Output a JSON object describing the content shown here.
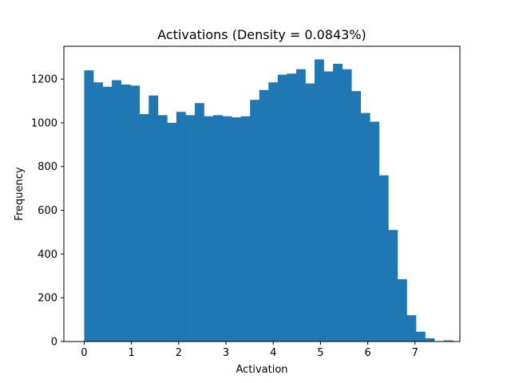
{
  "chart_data": {
    "type": "bar",
    "title": "Activations (Density = 0.0843%)",
    "xlabel": "Activation",
    "ylabel": "Frequency",
    "xlim": [
      -0.43,
      7.95
    ],
    "ylim": [
      0,
      1350
    ],
    "xticks": [
      0,
      1,
      2,
      3,
      4,
      5,
      6,
      7
    ],
    "yticks": [
      0,
      200,
      400,
      600,
      800,
      1000,
      1200
    ],
    "grid": false,
    "bar_color": "#1f77b4",
    "bin_width": 0.195,
    "bins": [
      {
        "x": 0.0,
        "value": 1240
      },
      {
        "x": 0.195,
        "value": 1185
      },
      {
        "x": 0.39,
        "value": 1165
      },
      {
        "x": 0.585,
        "value": 1195
      },
      {
        "x": 0.78,
        "value": 1175
      },
      {
        "x": 0.975,
        "value": 1170
      },
      {
        "x": 1.17,
        "value": 1040
      },
      {
        "x": 1.365,
        "value": 1125
      },
      {
        "x": 1.56,
        "value": 1035
      },
      {
        "x": 1.755,
        "value": 1000
      },
      {
        "x": 1.95,
        "value": 1050
      },
      {
        "x": 2.145,
        "value": 1035
      },
      {
        "x": 2.34,
        "value": 1090
      },
      {
        "x": 2.535,
        "value": 1030
      },
      {
        "x": 2.73,
        "value": 1035
      },
      {
        "x": 2.925,
        "value": 1030
      },
      {
        "x": 3.12,
        "value": 1025
      },
      {
        "x": 3.315,
        "value": 1030
      },
      {
        "x": 3.51,
        "value": 1105
      },
      {
        "x": 3.705,
        "value": 1150
      },
      {
        "x": 3.9,
        "value": 1185
      },
      {
        "x": 4.095,
        "value": 1220
      },
      {
        "x": 4.29,
        "value": 1225
      },
      {
        "x": 4.485,
        "value": 1245
      },
      {
        "x": 4.68,
        "value": 1180
      },
      {
        "x": 4.875,
        "value": 1290
      },
      {
        "x": 5.07,
        "value": 1235
      },
      {
        "x": 5.265,
        "value": 1270
      },
      {
        "x": 5.46,
        "value": 1245
      },
      {
        "x": 5.655,
        "value": 1145
      },
      {
        "x": 5.85,
        "value": 1045
      },
      {
        "x": 6.045,
        "value": 1005
      },
      {
        "x": 6.24,
        "value": 760
      },
      {
        "x": 6.435,
        "value": 510
      },
      {
        "x": 6.63,
        "value": 285
      },
      {
        "x": 6.825,
        "value": 120
      },
      {
        "x": 7.02,
        "value": 45
      },
      {
        "x": 7.215,
        "value": 15
      },
      {
        "x": 7.41,
        "value": 0
      },
      {
        "x": 7.605,
        "value": 5
      }
    ]
  }
}
